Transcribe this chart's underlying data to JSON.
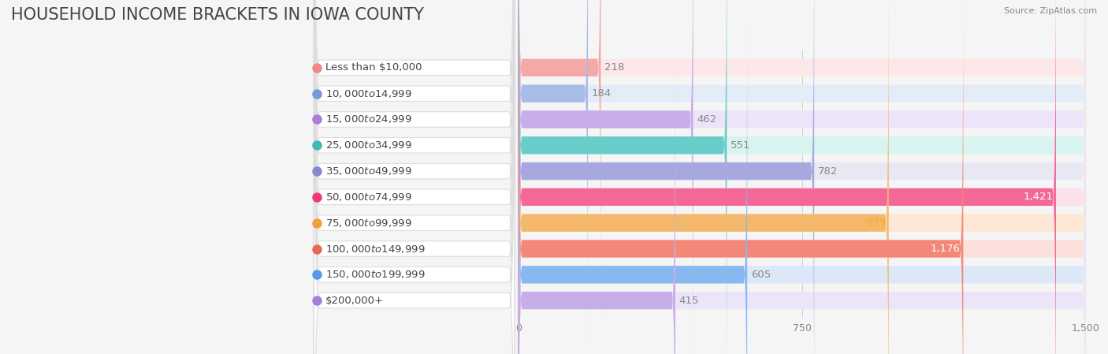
{
  "title": "HOUSEHOLD INCOME BRACKETS IN IOWA COUNTY",
  "source": "Source: ZipAtlas.com",
  "categories": [
    "Less than $10,000",
    "$10,000 to $14,999",
    "$15,000 to $24,999",
    "$25,000 to $34,999",
    "$35,000 to $49,999",
    "$50,000 to $74,999",
    "$75,000 to $99,999",
    "$100,000 to $149,999",
    "$150,000 to $199,999",
    "$200,000+"
  ],
  "values": [
    218,
    184,
    462,
    551,
    782,
    1421,
    979,
    1176,
    605,
    415
  ],
  "bar_colors": [
    "#f4a8a8",
    "#a8bce8",
    "#c8aee8",
    "#68ccc8",
    "#a8a8e0",
    "#f46898",
    "#f4b86a",
    "#f48878",
    "#88b8f0",
    "#c8aee8"
  ],
  "bar_bg_colors": [
    "#fce8e8",
    "#e4ecf8",
    "#ece4f8",
    "#d8f4f0",
    "#e8e8f4",
    "#fce0ec",
    "#fce8d4",
    "#fce0dc",
    "#dce8f8",
    "#ece4f8"
  ],
  "dot_colors": [
    "#f08888",
    "#7898d8",
    "#a87ed8",
    "#40b8b4",
    "#8888cc",
    "#f03878",
    "#f0a040",
    "#e86858",
    "#5898e8",
    "#a87ed8"
  ],
  "value_label_colors": [
    "#888888",
    "#888888",
    "#888888",
    "#888888",
    "#888888",
    "#ffffff",
    "#f8a830",
    "#ffffff",
    "#888888",
    "#888888"
  ],
  "value_inside": [
    false,
    false,
    false,
    false,
    false,
    true,
    true,
    true,
    false,
    false
  ],
  "xlim": [
    0,
    1500
  ],
  "xticks": [
    0,
    750,
    1500
  ],
  "background_color": "#f5f5f5",
  "plot_bg_color": "#f0f0f0",
  "bar_height": 0.65,
  "title_fontsize": 15,
  "label_fontsize": 9.5,
  "value_fontsize": 9.5
}
